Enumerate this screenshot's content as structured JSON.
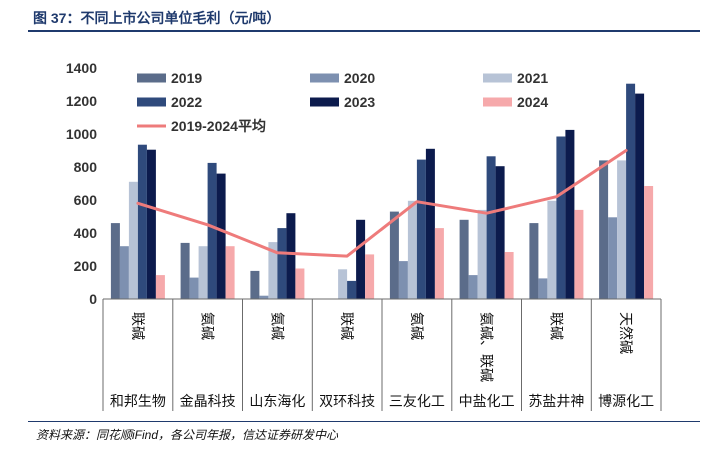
{
  "source": "资料来源：同花顺iFind，各公司年报，信达证券研发中心",
  "colors": {
    "title": "#1f3a6d",
    "rule": "#1f3a6d",
    "axis": "#6b6b6b"
  },
  "chart_data": {
    "type": "bar",
    "title": "图 37：不同上市公司单位毛利（元/吨）",
    "ylim": [
      0,
      1400
    ],
    "yticks": [
      0,
      200,
      400,
      600,
      800,
      1000,
      1200,
      1400
    ],
    "grid": false,
    "legend": "top-left",
    "categories": [
      "和邦生物",
      "金晶科技",
      "山东海化",
      "双环科技",
      "三友化工",
      "中盐化工",
      "苏盐井神",
      "博源化工"
    ],
    "subcategories": [
      "联碱",
      "氨碱",
      "氨碱",
      "联碱",
      "氨碱",
      "氨碱、联碱",
      "联碱",
      "天然碱"
    ],
    "series": [
      {
        "name": "2019",
        "type": "bar",
        "color": "#5b6c8a",
        "values": [
          460,
          340,
          170,
          null,
          530,
          480,
          460,
          840
        ]
      },
      {
        "name": "2020",
        "type": "bar",
        "color": "#7d90b0",
        "values": [
          320,
          130,
          20,
          null,
          230,
          145,
          125,
          495
        ]
      },
      {
        "name": "2021",
        "type": "bar",
        "color": "#b7c3d6",
        "values": [
          710,
          320,
          345,
          180,
          595,
          540,
          595,
          840
        ]
      },
      {
        "name": "2022",
        "type": "bar",
        "color": "#2f4a7c",
        "values": [
          935,
          825,
          430,
          110,
          845,
          865,
          985,
          1305
        ]
      },
      {
        "name": "2023",
        "type": "bar",
        "color": "#0c1b4d",
        "values": [
          905,
          760,
          520,
          480,
          910,
          805,
          1025,
          1245
        ]
      },
      {
        "name": "2024",
        "type": "bar",
        "color": "#f6a9ab",
        "values": [
          145,
          320,
          185,
          270,
          430,
          285,
          540,
          685
        ]
      },
      {
        "name": "2019-2024平均",
        "type": "line",
        "color": "#ee7b7b",
        "values": [
          580,
          450,
          280,
          260,
          590,
          520,
          620,
          900
        ]
      }
    ]
  }
}
